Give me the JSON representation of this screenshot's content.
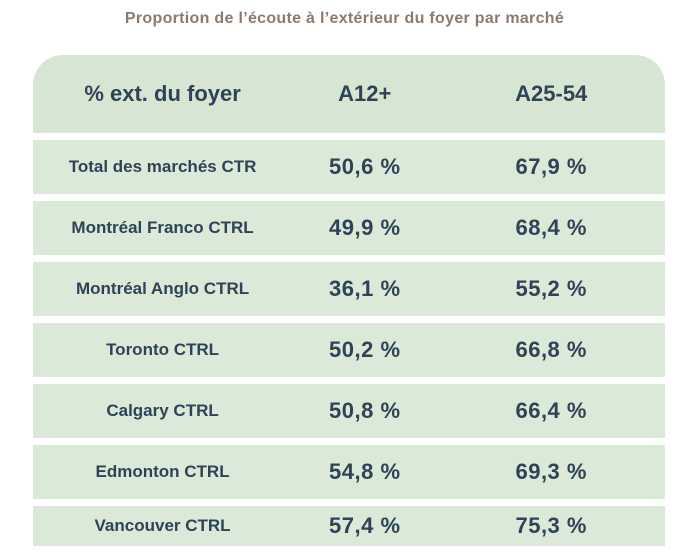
{
  "title": "Proportion de l’écoute à l’extérieur du foyer par marché",
  "table": {
    "headers": [
      "% ext. du foyer",
      "A12+",
      "A25-54"
    ],
    "rows": [
      {
        "label": "Total des marchés CTR",
        "a12": "50,6 %",
        "a2554": "67,9 %"
      },
      {
        "label": "Montréal Franco CTRL",
        "a12": "49,9 %",
        "a2554": "68,4 %"
      },
      {
        "label": "Montréal Anglo CTRL",
        "a12": "36,1 %",
        "a2554": "55,2 %"
      },
      {
        "label": "Toronto CTRL",
        "a12": "50,2 %",
        "a2554": "66,8 %"
      },
      {
        "label": "Calgary CTRL",
        "a12": "50,8 %",
        "a2554": "66,4 %"
      },
      {
        "label": "Edmonton CTRL",
        "a12": "54,8 %",
        "a2554": "69,3 %"
      },
      {
        "label": "Vancouver CTRL",
        "a12": "57,4 %",
        "a2554": "75,3 %"
      }
    ]
  },
  "colors": {
    "title_text": "#8c7a70",
    "header_background": "#d6e6d3",
    "row_background": "#dbe9d8",
    "table_text": "#2e4356",
    "page_background": "#ffffff"
  }
}
